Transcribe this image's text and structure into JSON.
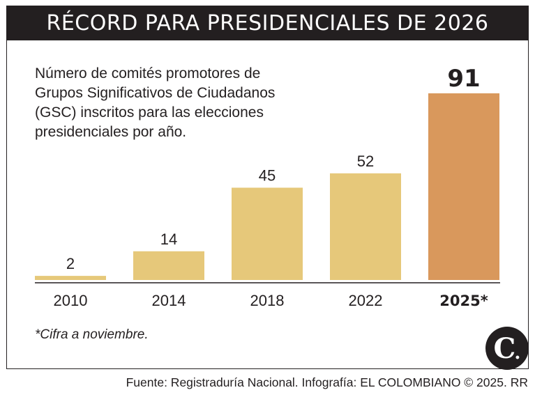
{
  "title": "RÉCORD PARA PRESIDENCIALES DE 2026",
  "description": [
    "Número de comités promotores de",
    "Grupos Significativos de Ciudadanos",
    "(GSC) inscritos para las elecciones",
    "presidenciales por año."
  ],
  "note": "*Cifra a noviembre.",
  "source": "Fuente: Registraduría Nacional. Infografía: EL COLOMBIANO © 2025. RR",
  "logo_text": "C.",
  "colors": {
    "bar": "#e6c87a",
    "highlight_bar": "#d9985c",
    "text": "#231f20"
  },
  "chart_data": {
    "type": "bar",
    "categories": [
      "2010",
      "2014",
      "2018",
      "2022",
      "2025*"
    ],
    "values": [
      2,
      14,
      45,
      52,
      91
    ],
    "highlight_index": 4,
    "title": "",
    "xlabel": "",
    "ylabel": "",
    "ylim": [
      0,
      91
    ],
    "grid": false
  }
}
